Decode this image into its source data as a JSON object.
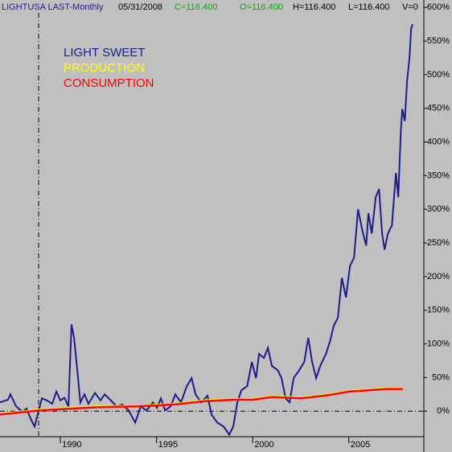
{
  "chart_data": {
    "type": "line",
    "header": [
      {
        "text": "LIGHTUSA LAST-Monthly",
        "color": "#1c1c9c"
      },
      {
        "text": "05/31/2008",
        "color": "#000000"
      },
      {
        "text": "C=116.400",
        "color": "#00b000"
      },
      {
        "text": "O=116.400",
        "color": "#00b000"
      },
      {
        "text": "H=116.400",
        "color": "#000000"
      },
      {
        "text": "L=116.400",
        "color": "#000000"
      },
      {
        "text": "V=0",
        "color": "#000000"
      }
    ],
    "xlim": [
      1986.86,
      2008.9
    ],
    "xticks": [
      1990,
      1995,
      2000,
      2005
    ],
    "ylim": [
      -38,
      611
    ],
    "yticks": [
      {
        "value": 600,
        "label": "600%"
      },
      {
        "value": 550,
        "label": "550%"
      },
      {
        "value": 500,
        "label": "500%"
      },
      {
        "value": 450,
        "label": "450%"
      },
      {
        "value": 400,
        "label": "400%"
      },
      {
        "value": 350,
        "label": "350%"
      },
      {
        "value": 300,
        "label": "300%"
      },
      {
        "value": 250,
        "label": "250%"
      },
      {
        "value": 200,
        "label": "200%"
      },
      {
        "value": 150,
        "label": "150%"
      },
      {
        "value": 100,
        "label": "100%"
      },
      {
        "value": 50,
        "label": "50%"
      },
      {
        "value": 0,
        "label": "0%"
      }
    ],
    "series": [
      {
        "name": "LIGHT SWEET",
        "color": "#1c1c8c",
        "x": [
          1986.86,
          1987.28,
          1987.4,
          1987.7,
          1988.03,
          1988.24,
          1988.45,
          1988.66,
          1988.87,
          1989.04,
          1989.29,
          1989.58,
          1989.79,
          1990.0,
          1990.21,
          1990.42,
          1990.58,
          1990.71,
          1990.88,
          1991.04,
          1991.25,
          1991.46,
          1991.8,
          1992.09,
          1992.3,
          1992.59,
          1992.93,
          1993.22,
          1993.55,
          1993.89,
          1994.18,
          1994.48,
          1994.81,
          1995.02,
          1995.23,
          1995.44,
          1995.73,
          1995.98,
          1996.27,
          1996.57,
          1996.82,
          1997.03,
          1997.32,
          1997.65,
          1997.86,
          1998.16,
          1998.49,
          1998.78,
          1998.99,
          1999.2,
          1999.41,
          1999.71,
          1999.96,
          2000.17,
          2000.33,
          2000.58,
          2000.79,
          2001.0,
          2001.3,
          2001.5,
          2001.71,
          2001.92,
          2002.13,
          2002.42,
          2002.68,
          2002.89,
          2003.09,
          2003.3,
          2003.51,
          2003.81,
          2004.01,
          2004.22,
          2004.43,
          2004.64,
          2004.85,
          2005.06,
          2005.27,
          2005.48,
          2005.69,
          2005.9,
          2006.02,
          2006.19,
          2006.4,
          2006.57,
          2006.73,
          2006.86,
          2007.03,
          2007.24,
          2007.45,
          2007.57,
          2007.7,
          2007.78,
          2007.91,
          2008.03,
          2008.16,
          2008.24,
          2008.32
        ],
        "values": [
          13,
          17,
          25,
          7,
          -1,
          4,
          -11,
          -23,
          1,
          19,
          16,
          11,
          29,
          16,
          20,
          7,
          129,
          109,
          61,
          13,
          25,
          11,
          27,
          16,
          25,
          17,
          7,
          10,
          1,
          -17,
          7,
          1,
          13,
          5,
          19,
          1,
          7,
          25,
          13,
          37,
          49,
          25,
          13,
          23,
          -5,
          -17,
          -23,
          -35,
          -23,
          13,
          31,
          37,
          73,
          49,
          85,
          79,
          94,
          67,
          61,
          49,
          19,
          13,
          49,
          61,
          73,
          109,
          73,
          49,
          67,
          85,
          103,
          127,
          139,
          198,
          169,
          216,
          228,
          300,
          270,
          246,
          294,
          264,
          318,
          330,
          264,
          240,
          264,
          276,
          354,
          318,
          414,
          449,
          431,
          491,
          527,
          569,
          575
        ]
      },
      {
        "name": "PRODUCTION",
        "color": "#ffff00",
        "x": [
          1986.86,
          1988.87,
          1990.0,
          1992.0,
          1994.0,
          1996.0,
          1997.5,
          1999.0,
          2000.0,
          2001.0,
          2002.5,
          2004.0,
          2005.0,
          2006.0,
          2007.0,
          2007.8
        ],
        "values": [
          -4,
          2,
          4,
          7,
          8,
          11,
          16,
          18,
          18,
          22,
          20,
          25,
          30,
          32,
          34,
          34
        ]
      },
      {
        "name": "CONSUMPTION",
        "color": "#ff0000",
        "x": [
          1986.86,
          1988.87,
          1990.0,
          1992.0,
          1994.0,
          1996.0,
          1997.5,
          1999.0,
          2000.0,
          2001.0,
          2002.5,
          2004.0,
          2005.0,
          2006.0,
          2007.0,
          2007.8
        ],
        "values": [
          -5,
          1,
          3,
          6,
          7,
          10,
          15,
          17,
          17,
          21,
          19,
          24,
          29,
          31,
          33,
          33
        ]
      }
    ]
  }
}
